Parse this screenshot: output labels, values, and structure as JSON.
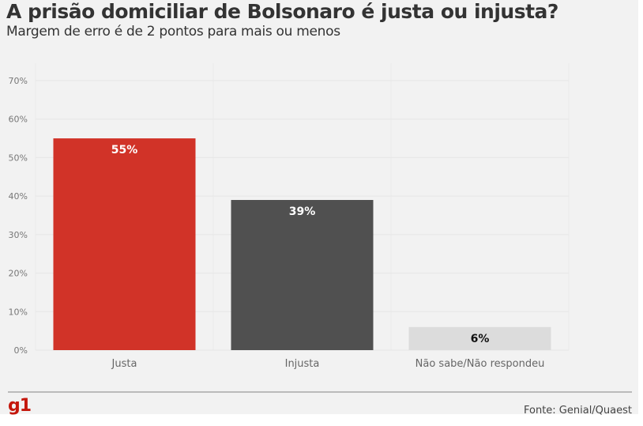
{
  "header": {
    "title": "A prisão domiciliar de Bolsonaro é justa ou injusta?",
    "subtitle": "Margem de erro é de 2 pontos para mais ou menos"
  },
  "footer": {
    "logo": "g1",
    "source": "Fonte: Genial/Quaest"
  },
  "chart_data": {
    "type": "bar",
    "title": "A prisão domiciliar de Bolsonaro é justa ou injusta?",
    "subtitle": "Margem de erro é de 2 pontos para mais ou menos",
    "categories": [
      "Justa",
      "Injusta",
      "Não sabe/Não respondeu"
    ],
    "values": [
      55,
      39,
      6
    ],
    "labels": [
      "55%",
      "39%",
      "6%"
    ],
    "colors": [
      "#d13328",
      "#505050",
      "#dcdcdc"
    ],
    "label_colors": [
      "#ffffff",
      "#ffffff",
      "#111111"
    ],
    "ylim": [
      0,
      70
    ],
    "yticks": [
      "0%",
      "10%",
      "20%",
      "30%",
      "40%",
      "50%",
      "60%",
      "70%"
    ],
    "grid": true,
    "xlabel": "",
    "ylabel": ""
  }
}
